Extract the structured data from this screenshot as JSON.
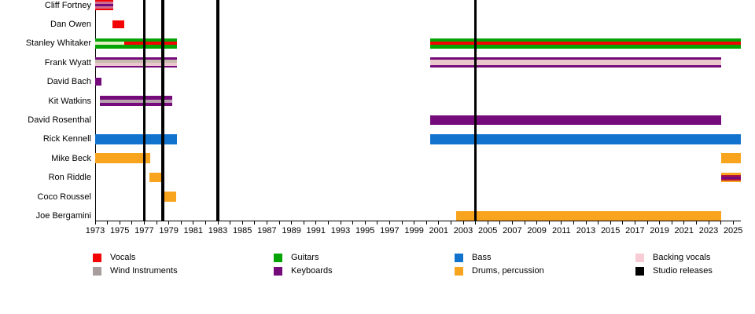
{
  "chart_data": {
    "type": "timeline",
    "axis": {
      "start": 1973,
      "end": 2025.6,
      "tick_interval": 1,
      "label_interval": 2,
      "first_label": 1973,
      "last_label": 2025
    },
    "colors": {
      "vocals": "#f20404",
      "wind": "#a89c9c",
      "guitars": "#04a404",
      "keyboards": "#750b7a",
      "bass": "#1273cf",
      "drums": "#f9a41f",
      "backing": "#f8ccd4",
      "release": "#000000",
      "pale_green": "#e4efc4",
      "mauve": "#cf6d8f",
      "warm_gray": "#c8bcb2",
      "pink_center": "#eac6cd",
      "gray_mauve": "#b8a2b0",
      "crimson": "#ae1340"
    },
    "releases": {
      "legend_label": "Studio releases",
      "years": [
        1977,
        1978.5,
        1983,
        2004
      ]
    },
    "members": [
      {
        "name": "Cliff Fortney",
        "periods": [
          {
            "start": 1973,
            "end": 1974.5,
            "color": "vocals",
            "overlays": [
              {
                "color": "mauve",
                "top": 0.16,
                "height": 0.68
              },
              {
                "color": "keyboards",
                "top": 0.36,
                "height": 0.28
              }
            ]
          }
        ]
      },
      {
        "name": "Dan Owen",
        "periods": [
          {
            "start": 1974.4,
            "end": 1975.4,
            "color": "vocals",
            "hscale": 0.78
          }
        ]
      },
      {
        "name": "Stanley Whitaker",
        "periods": [
          {
            "start": 1973,
            "end": 1979.65,
            "color": "guitars",
            "overlays": [
              {
                "color": "pale_green",
                "top": 0.34,
                "height": 0.32,
                "start": 1973,
                "end": 1975.35
              },
              {
                "color": "vocals",
                "top": 0.34,
                "height": 0.32,
                "start": 1975.35,
                "end": 1979.65
              }
            ]
          },
          {
            "start": 2000.3,
            "end": 2025.6,
            "color": "guitars",
            "overlays": [
              {
                "color": "vocals",
                "top": 0.34,
                "height": 0.32
              }
            ]
          }
        ]
      },
      {
        "name": "Frank Wyatt",
        "periods": [
          {
            "start": 1973,
            "end": 1979.65,
            "color": "keyboards",
            "overlays": [
              {
                "color": "warm_gray",
                "top": 0.17,
                "height": 0.33
              },
              {
                "color": "pink_center",
                "top": 0.5,
                "height": 0.33
              }
            ]
          },
          {
            "start": 2000.3,
            "end": 2024,
            "color": "keyboards",
            "overlays": [
              {
                "color": "pink_center",
                "top": 0.22,
                "height": 0.56
              }
            ]
          }
        ]
      },
      {
        "name": "David Bach",
        "periods": [
          {
            "start": 1973,
            "end": 1973.5,
            "color": "keyboards",
            "hscale": 0.78
          }
        ]
      },
      {
        "name": "Kit Watkins",
        "periods": [
          {
            "start": 1973.4,
            "end": 1979.3,
            "color": "keyboards",
            "overlays": [
              {
                "color": "gray_mauve",
                "top": 0.34,
                "height": 0.32
              }
            ]
          }
        ]
      },
      {
        "name": "David Rosenthal",
        "periods": [
          {
            "start": 2000.3,
            "end": 2024,
            "color": "keyboards"
          }
        ]
      },
      {
        "name": "Rick Kennell",
        "periods": [
          {
            "start": 1973,
            "end": 1979.65,
            "color": "bass"
          },
          {
            "start": 2000.3,
            "end": 2025.6,
            "color": "bass"
          }
        ]
      },
      {
        "name": "Mike Beck",
        "periods": [
          {
            "start": 1973,
            "end": 1977.5,
            "color": "drums"
          },
          {
            "start": 2024,
            "end": 2025.6,
            "color": "drums"
          }
        ]
      },
      {
        "name": "Ron Riddle",
        "periods": [
          {
            "start": 1977.4,
            "end": 1978.45,
            "color": "drums"
          },
          {
            "start": 2024,
            "end": 2025.6,
            "color": "drums",
            "overlays": [
              {
                "color": "crimson",
                "top": 0.22,
                "height": 0.56
              },
              {
                "color": "keyboards",
                "top": 0.38,
                "height": 0.26
              }
            ]
          }
        ]
      },
      {
        "name": "Coco Roussel",
        "periods": [
          {
            "start": 1978.45,
            "end": 1979.6,
            "color": "drums"
          }
        ]
      },
      {
        "name": "Joe Bergamini",
        "periods": [
          {
            "start": 2002.4,
            "end": 2024,
            "color": "drums"
          }
        ]
      }
    ],
    "legend": [
      {
        "items": [
          {
            "label": "Vocals",
            "color": "vocals"
          },
          {
            "label": "Wind Instruments",
            "color": "wind"
          }
        ]
      },
      {
        "items": [
          {
            "label": "Guitars",
            "color": "guitars"
          },
          {
            "label": "Keyboards",
            "color": "keyboards"
          }
        ]
      },
      {
        "items": [
          {
            "label": "Bass",
            "color": "bass"
          },
          {
            "label": "Drums, percussion",
            "color": "drums"
          }
        ]
      },
      {
        "items": [
          {
            "label": "Backing vocals",
            "color": "backing"
          },
          {
            "label": "Studio releases",
            "color": "release"
          }
        ]
      }
    ]
  }
}
